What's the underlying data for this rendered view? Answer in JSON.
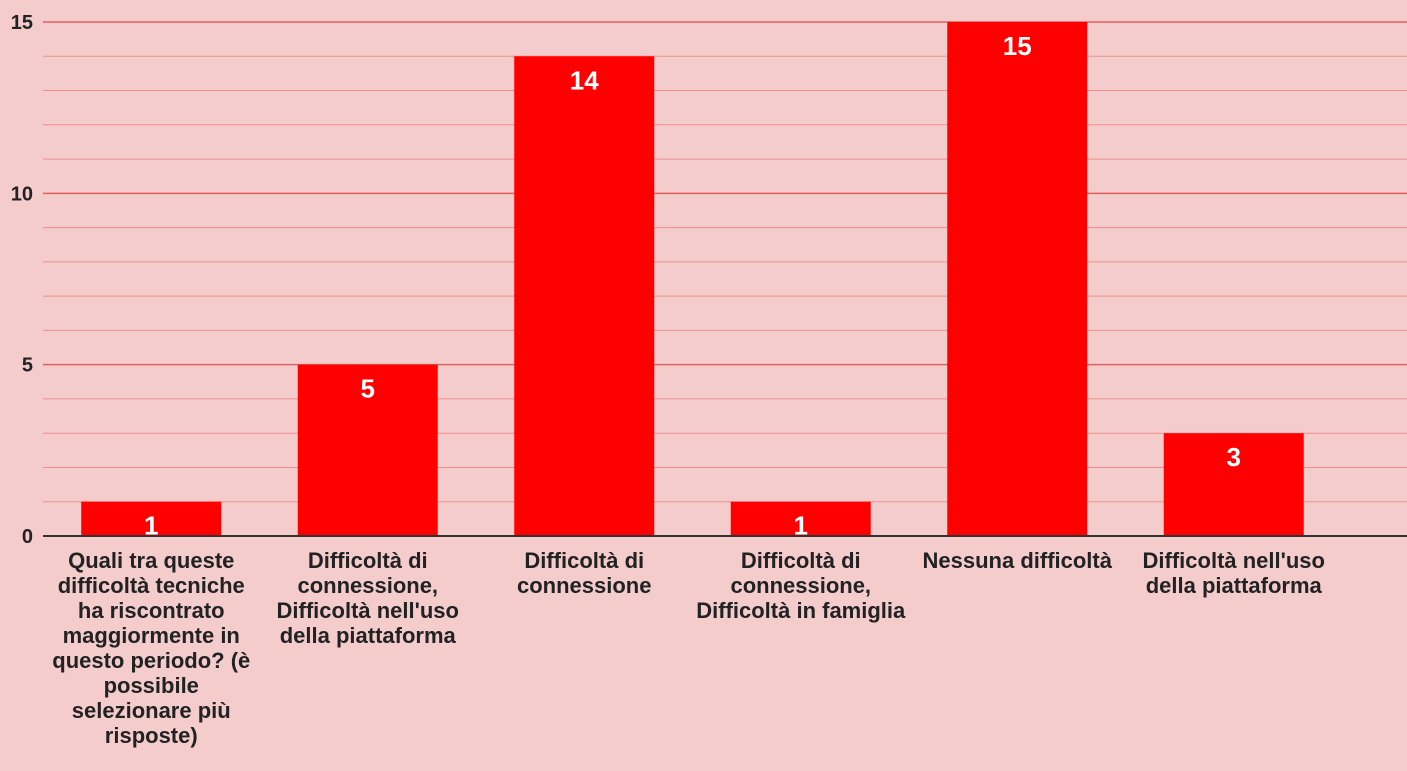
{
  "chart_data": {
    "type": "bar",
    "title": "",
    "xlabel": "",
    "ylabel": "",
    "categories": [
      "Quali tra queste difficoltà tecniche ha riscontrato maggiormente in questo periodo? (è possibile selezionare più risposte)",
      "Difficoltà di connessione, Difficoltà nell'uso della piattaforma",
      "Difficoltà di connessione",
      "Difficoltà di connessione, Difficoltà in famiglia",
      "Nessuna difficoltà",
      "Difficoltà nell'uso della piattaforma"
    ],
    "values": [
      1,
      5,
      14,
      1,
      15,
      3
    ],
    "ylim": [
      0,
      15
    ],
    "yticks": [
      0,
      5,
      10,
      15
    ],
    "minor_gridlines_per_major": 5,
    "grid": true,
    "legend": "none",
    "data_labels": true
  },
  "colors": {
    "background": "#f4cccc",
    "bar": "#ff0000",
    "major_grid": "#e06060",
    "minor_grid": "#f28b8b",
    "axis": "#333333",
    "data_label": "#ffffff",
    "tick_label": "#222222"
  }
}
